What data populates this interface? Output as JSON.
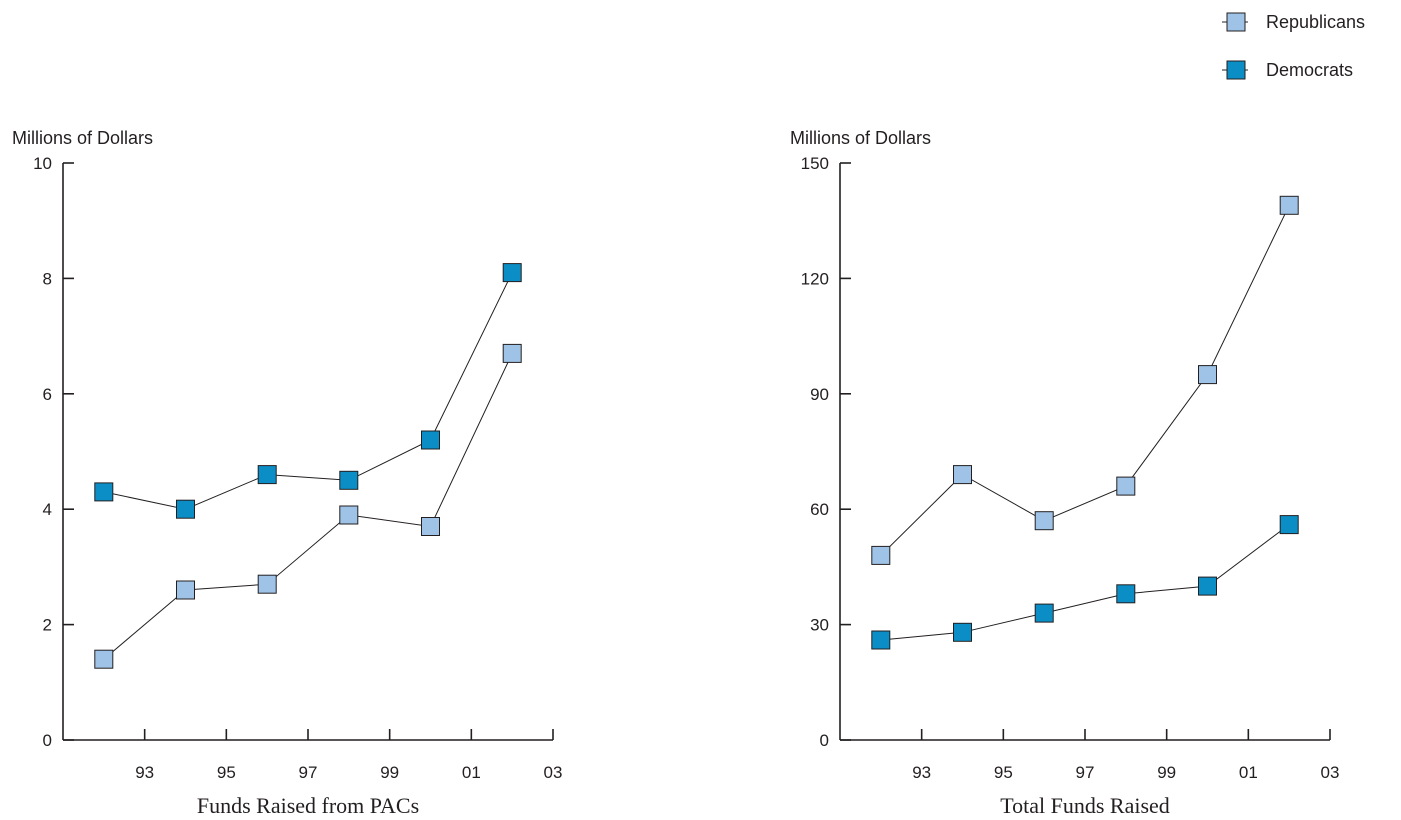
{
  "legend": {
    "placement": "top-right",
    "items": [
      {
        "label": "Republicans",
        "color": "#9ec3e6"
      },
      {
        "label": "Democrats",
        "color": "#0b8ec6"
      }
    ]
  },
  "colors": {
    "line": "#231f20",
    "axis": "#231f20",
    "marker_stroke": "#231f20"
  },
  "chart_data": [
    {
      "type": "line",
      "title": "Funds Raised from PACs",
      "ylabel": "Millions of Dollars",
      "xlabel": "",
      "ylim": [
        0,
        10
      ],
      "yticks": [
        0,
        2,
        4,
        6,
        8,
        10
      ],
      "ytick_labels": [
        "0",
        "2",
        "4",
        "6",
        "8",
        "10"
      ],
      "xlim": [
        1991,
        2003
      ],
      "xticks": [
        1993,
        1995,
        1997,
        1999,
        2001,
        2003
      ],
      "xtick_labels": [
        "93",
        "95",
        "97",
        "99",
        "01",
        "03"
      ],
      "x": [
        1992,
        1994,
        1996,
        1998,
        2000,
        2002
      ],
      "grid": false,
      "series": [
        {
          "name": "Republicans",
          "values": [
            1.4,
            2.6,
            2.7,
            3.9,
            3.7,
            6.7
          ]
        },
        {
          "name": "Democrats",
          "values": [
            4.3,
            4.0,
            4.6,
            4.5,
            5.2,
            8.1
          ]
        }
      ]
    },
    {
      "type": "line",
      "title": "Total Funds Raised",
      "ylabel": "Millions of Dollars",
      "xlabel": "",
      "ylim": [
        0,
        150
      ],
      "yticks": [
        0,
        30,
        60,
        90,
        120,
        150
      ],
      "ytick_labels": [
        "0",
        "30",
        "60",
        "90",
        "120",
        "150"
      ],
      "xlim": [
        1991,
        2003
      ],
      "xticks": [
        1993,
        1995,
        1997,
        1999,
        2001,
        2003
      ],
      "xtick_labels": [
        "93",
        "95",
        "97",
        "99",
        "01",
        "03"
      ],
      "x": [
        1992,
        1994,
        1996,
        1998,
        2000,
        2002
      ],
      "grid": false,
      "series": [
        {
          "name": "Republicans",
          "values": [
            48,
            69,
            57,
            66,
            95,
            139
          ]
        },
        {
          "name": "Democrats",
          "values": [
            26,
            28,
            33,
            38,
            40,
            56
          ]
        }
      ]
    }
  ]
}
